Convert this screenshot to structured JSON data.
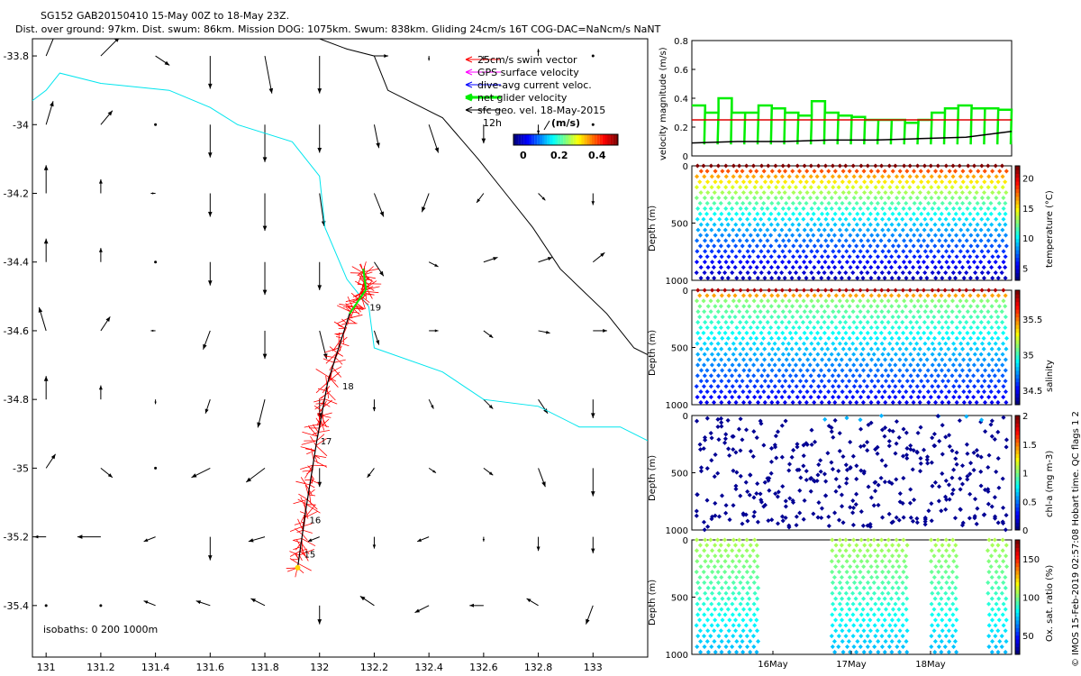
{
  "header": {
    "line1": "SG152 GAB20150410 15-May 00Z to 18-May 23Z.",
    "line2": "Dist. over ground: 97km. Dist. swum: 86km. Mission DOG: 1075km. Swum: 838km. Gliding 24cm/s 16T COG-DAC=NaNcm/s NaNT"
  },
  "colors": {
    "swim": "#ff0000",
    "gps": "#ff00ff",
    "dac": "#0000ff",
    "net": "#00ee00",
    "sfc": "#000000",
    "coast": "#00e5ee",
    "isobath": "#000000",
    "mean_line": "#dd0000"
  },
  "map": {
    "legend": [
      {
        "key": "swim",
        "label": "25cm/s swim vector"
      },
      {
        "key": "gps",
        "label": "GPS surface velocity"
      },
      {
        "key": "dac",
        "label": "dive-avg current veloc."
      },
      {
        "key": "net",
        "label": "net glider velocity"
      },
      {
        "key": "sfc",
        "label": "sfc geo. vel. 18-May-2015"
      }
    ],
    "scale_label": "12h",
    "colorbar_title": "(m/s)",
    "colorbar_ticks": [
      "0",
      "0.2",
      "0.4"
    ],
    "isobath_label": "isobaths: 0   200  1000m",
    "day_labels": [
      {
        "text": "15",
        "lon": 131.93,
        "lat": -35.25
      },
      {
        "text": "16",
        "lon": 131.95,
        "lat": -35.15
      },
      {
        "text": "17",
        "lon": 131.99,
        "lat": -34.92
      },
      {
        "text": "18",
        "lon": 132.07,
        "lat": -34.76
      },
      {
        "text": "19",
        "lon": 132.17,
        "lat": -34.53
      }
    ]
  },
  "chart_data": [
    {
      "type": "map",
      "xlim": [
        130.95,
        133.2
      ],
      "ylim": [
        -35.55,
        -33.75
      ],
      "x_ticks": [
        131,
        131.2,
        131.4,
        131.6,
        131.8,
        132,
        132.2,
        132.4,
        132.6,
        132.8,
        133
      ],
      "y_ticks": [
        -33.8,
        -34,
        -34.2,
        -34.4,
        -34.6,
        -34.8,
        -35,
        -35.2,
        -35.4
      ],
      "track": [
        [
          131.92,
          -35.29
        ],
        [
          131.95,
          -35.12
        ],
        [
          131.99,
          -34.92
        ],
        [
          132.03,
          -34.75
        ],
        [
          132.11,
          -34.55
        ],
        [
          132.17,
          -34.48
        ],
        [
          132.16,
          -34.42
        ]
      ],
      "isobath_200m": [
        [
          130.95,
          -33.93
        ],
        [
          131.0,
          -33.9
        ],
        [
          131.05,
          -33.85
        ],
        [
          131.2,
          -33.88
        ],
        [
          131.45,
          -33.9
        ],
        [
          131.6,
          -33.95
        ],
        [
          131.7,
          -34.0
        ],
        [
          131.9,
          -34.05
        ],
        [
          132.0,
          -34.15
        ],
        [
          132.02,
          -34.3
        ],
        [
          132.1,
          -34.45
        ],
        [
          132.18,
          -34.53
        ],
        [
          132.2,
          -34.65
        ],
        [
          132.45,
          -34.72
        ],
        [
          132.6,
          -34.8
        ],
        [
          132.8,
          -34.82
        ],
        [
          132.95,
          -34.88
        ],
        [
          133.1,
          -34.88
        ],
        [
          133.2,
          -34.92
        ]
      ],
      "isobath_1000m": [
        [
          132.0,
          -33.75
        ],
        [
          132.1,
          -33.78
        ],
        [
          132.2,
          -33.8
        ],
        [
          132.25,
          -33.9
        ],
        [
          132.45,
          -33.98
        ],
        [
          132.58,
          -34.1
        ],
        [
          132.68,
          -34.2
        ],
        [
          132.78,
          -34.3
        ],
        [
          132.88,
          -34.42
        ],
        [
          133.05,
          -34.55
        ],
        [
          133.15,
          -34.65
        ],
        [
          133.2,
          -34.67
        ]
      ],
      "vector_grid": {
        "lons": [
          131.0,
          131.2,
          131.4,
          131.6,
          131.8,
          132.0,
          132.2,
          132.4,
          132.6,
          132.8,
          133.0
        ],
        "lats": [
          -33.8,
          -34.0,
          -34.2,
          -34.4,
          -34.6,
          -34.8,
          -35.0,
          -35.2,
          -35.4
        ],
        "u": [
          [
            0.05,
            0.08,
            0.06,
            0.0,
            0.03,
            0.0,
            0.06,
            0.0,
            0.0,
            0.0,
            0.0
          ],
          [
            0.03,
            0.05,
            0.0,
            0.0,
            0.0,
            0.0,
            0.02,
            0.04,
            0.0,
            0.0,
            0.0
          ],
          [
            0.0,
            0.0,
            -0.02,
            0.0,
            0.0,
            0.02,
            0.04,
            -0.03,
            -0.03,
            0.03,
            0.0
          ],
          [
            0.0,
            0.0,
            0.0,
            0.0,
            0.0,
            0.0,
            0.04,
            0.04,
            0.06,
            0.06,
            0.05
          ],
          [
            -0.03,
            0.04,
            -0.02,
            -0.03,
            0.0,
            0.03,
            0.02,
            0.04,
            0.04,
            0.05,
            0.06
          ],
          [
            0.0,
            0.0,
            0.0,
            -0.02,
            -0.03,
            0.0,
            0.0,
            0.02,
            0.04,
            0.04,
            0.0
          ],
          [
            0.04,
            0.05,
            0.0,
            -0.08,
            -0.08,
            0.0,
            -0.03,
            0.03,
            0.04,
            0.03,
            0.0
          ],
          [
            -0.05,
            -0.1,
            -0.05,
            0.0,
            -0.07,
            -0.05,
            0.0,
            -0.05,
            0.0,
            0.0,
            0.0
          ],
          [
            0.0,
            0.0,
            -0.05,
            -0.06,
            -0.06,
            0.0,
            -0.06,
            -0.06,
            -0.06,
            -0.05,
            -0.03
          ]
        ],
        "v": [
          [
            0.12,
            0.08,
            -0.04,
            -0.14,
            -0.16,
            -0.16,
            0.0,
            -0.02,
            -0.02,
            0.03,
            0.0
          ],
          [
            0.1,
            0.06,
            0.0,
            -0.14,
            -0.16,
            -0.12,
            -0.1,
            -0.12,
            -0.08,
            -0.04,
            0.0
          ],
          [
            0.12,
            0.06,
            0.0,
            -0.1,
            -0.16,
            -0.14,
            -0.1,
            -0.08,
            -0.04,
            -0.03,
            -0.05
          ],
          [
            0.1,
            0.06,
            0.0,
            -0.1,
            -0.14,
            -0.12,
            -0.06,
            -0.02,
            0.02,
            0.02,
            0.04
          ],
          [
            0.1,
            0.06,
            0.0,
            -0.08,
            -0.12,
            -0.12,
            -0.06,
            0.0,
            -0.03,
            -0.01,
            0.0
          ],
          [
            0.1,
            0.06,
            -0.02,
            -0.06,
            -0.12,
            -0.08,
            -0.05,
            -0.04,
            -0.04,
            -0.06,
            -0.08
          ],
          [
            0.06,
            -0.04,
            0.0,
            -0.04,
            -0.06,
            -0.08,
            -0.04,
            -0.02,
            -0.03,
            -0.08,
            -0.12
          ],
          [
            0.0,
            0.0,
            -0.02,
            -0.1,
            -0.02,
            -0.02,
            -0.05,
            -0.02,
            -0.02,
            -0.06,
            -0.07
          ],
          [
            0.0,
            0.0,
            0.02,
            0.02,
            0.03,
            -0.08,
            0.04,
            -0.03,
            0.0,
            0.03,
            -0.08
          ]
        ]
      }
    },
    {
      "type": "line",
      "ylabel": "velocity magnitude (m/s)",
      "ylim": [
        0,
        0.8
      ],
      "y_ticks": [
        0,
        0.2,
        0.4,
        0.6,
        0.8
      ],
      "x_days_range": [
        15.0,
        19.0
      ],
      "series": [
        {
          "key": "net",
          "values": [
            0.35,
            0.3,
            0.4,
            0.3,
            0.3,
            0.35,
            0.33,
            0.3,
            0.28,
            0.38,
            0.3,
            0.28,
            0.27,
            0.25,
            0.25,
            0.25,
            0.23,
            0.25,
            0.3,
            0.33,
            0.35,
            0.33,
            0.33,
            0.32
          ]
        },
        {
          "key": "mean_line",
          "values": [
            0.25,
            0.25
          ]
        },
        {
          "key": "sfc",
          "values": [
            0.09,
            0.1,
            0.1,
            0.11,
            0.11,
            0.12,
            0.13,
            0.17
          ]
        }
      ]
    },
    {
      "type": "scatter",
      "ylabel": "Depth (m)",
      "ylim": [
        1000,
        0
      ],
      "y_ticks": [
        0,
        500,
        1000
      ],
      "colorbar_label": "temperature (°C)",
      "colorbar_ticks": [
        5,
        10,
        15,
        20
      ],
      "crange": [
        3,
        22
      ],
      "dives": 44,
      "coverage": "full"
    },
    {
      "type": "scatter",
      "ylabel": "Depth (m)",
      "ylim": [
        1000,
        0
      ],
      "y_ticks": [
        0,
        500,
        1000
      ],
      "colorbar_label": "salinity",
      "colorbar_ticks": [
        34.5,
        35,
        35.5
      ],
      "crange": [
        34.3,
        35.9
      ],
      "dives": 44,
      "coverage": "full"
    },
    {
      "type": "scatter",
      "ylabel": "Depth (m)",
      "ylim": [
        1000,
        0
      ],
      "y_ticks": [
        0,
        500,
        1000
      ],
      "colorbar_label": "chl-a (mg m-3)",
      "colorbar_ticks": [
        0,
        0.5,
        1,
        1.5,
        2
      ],
      "crange": [
        0,
        2
      ],
      "dives": 44,
      "coverage": "sparse"
    },
    {
      "type": "scatter",
      "ylabel": "Depth (m)",
      "ylim": [
        1000,
        0
      ],
      "y_ticks": [
        0,
        500,
        1000
      ],
      "colorbar_label": "Ox. sat. ratio (%)",
      "colorbar_ticks": [
        50,
        100,
        150
      ],
      "crange": [
        25,
        175
      ],
      "dives": 44,
      "coverage": "gaps",
      "x_ticks": [
        "16May",
        "17May",
        "18May"
      ]
    }
  ],
  "side_note": "© IMOS 15-Feb-2019 02:57:08 Hobart time. QC flags 1  2"
}
